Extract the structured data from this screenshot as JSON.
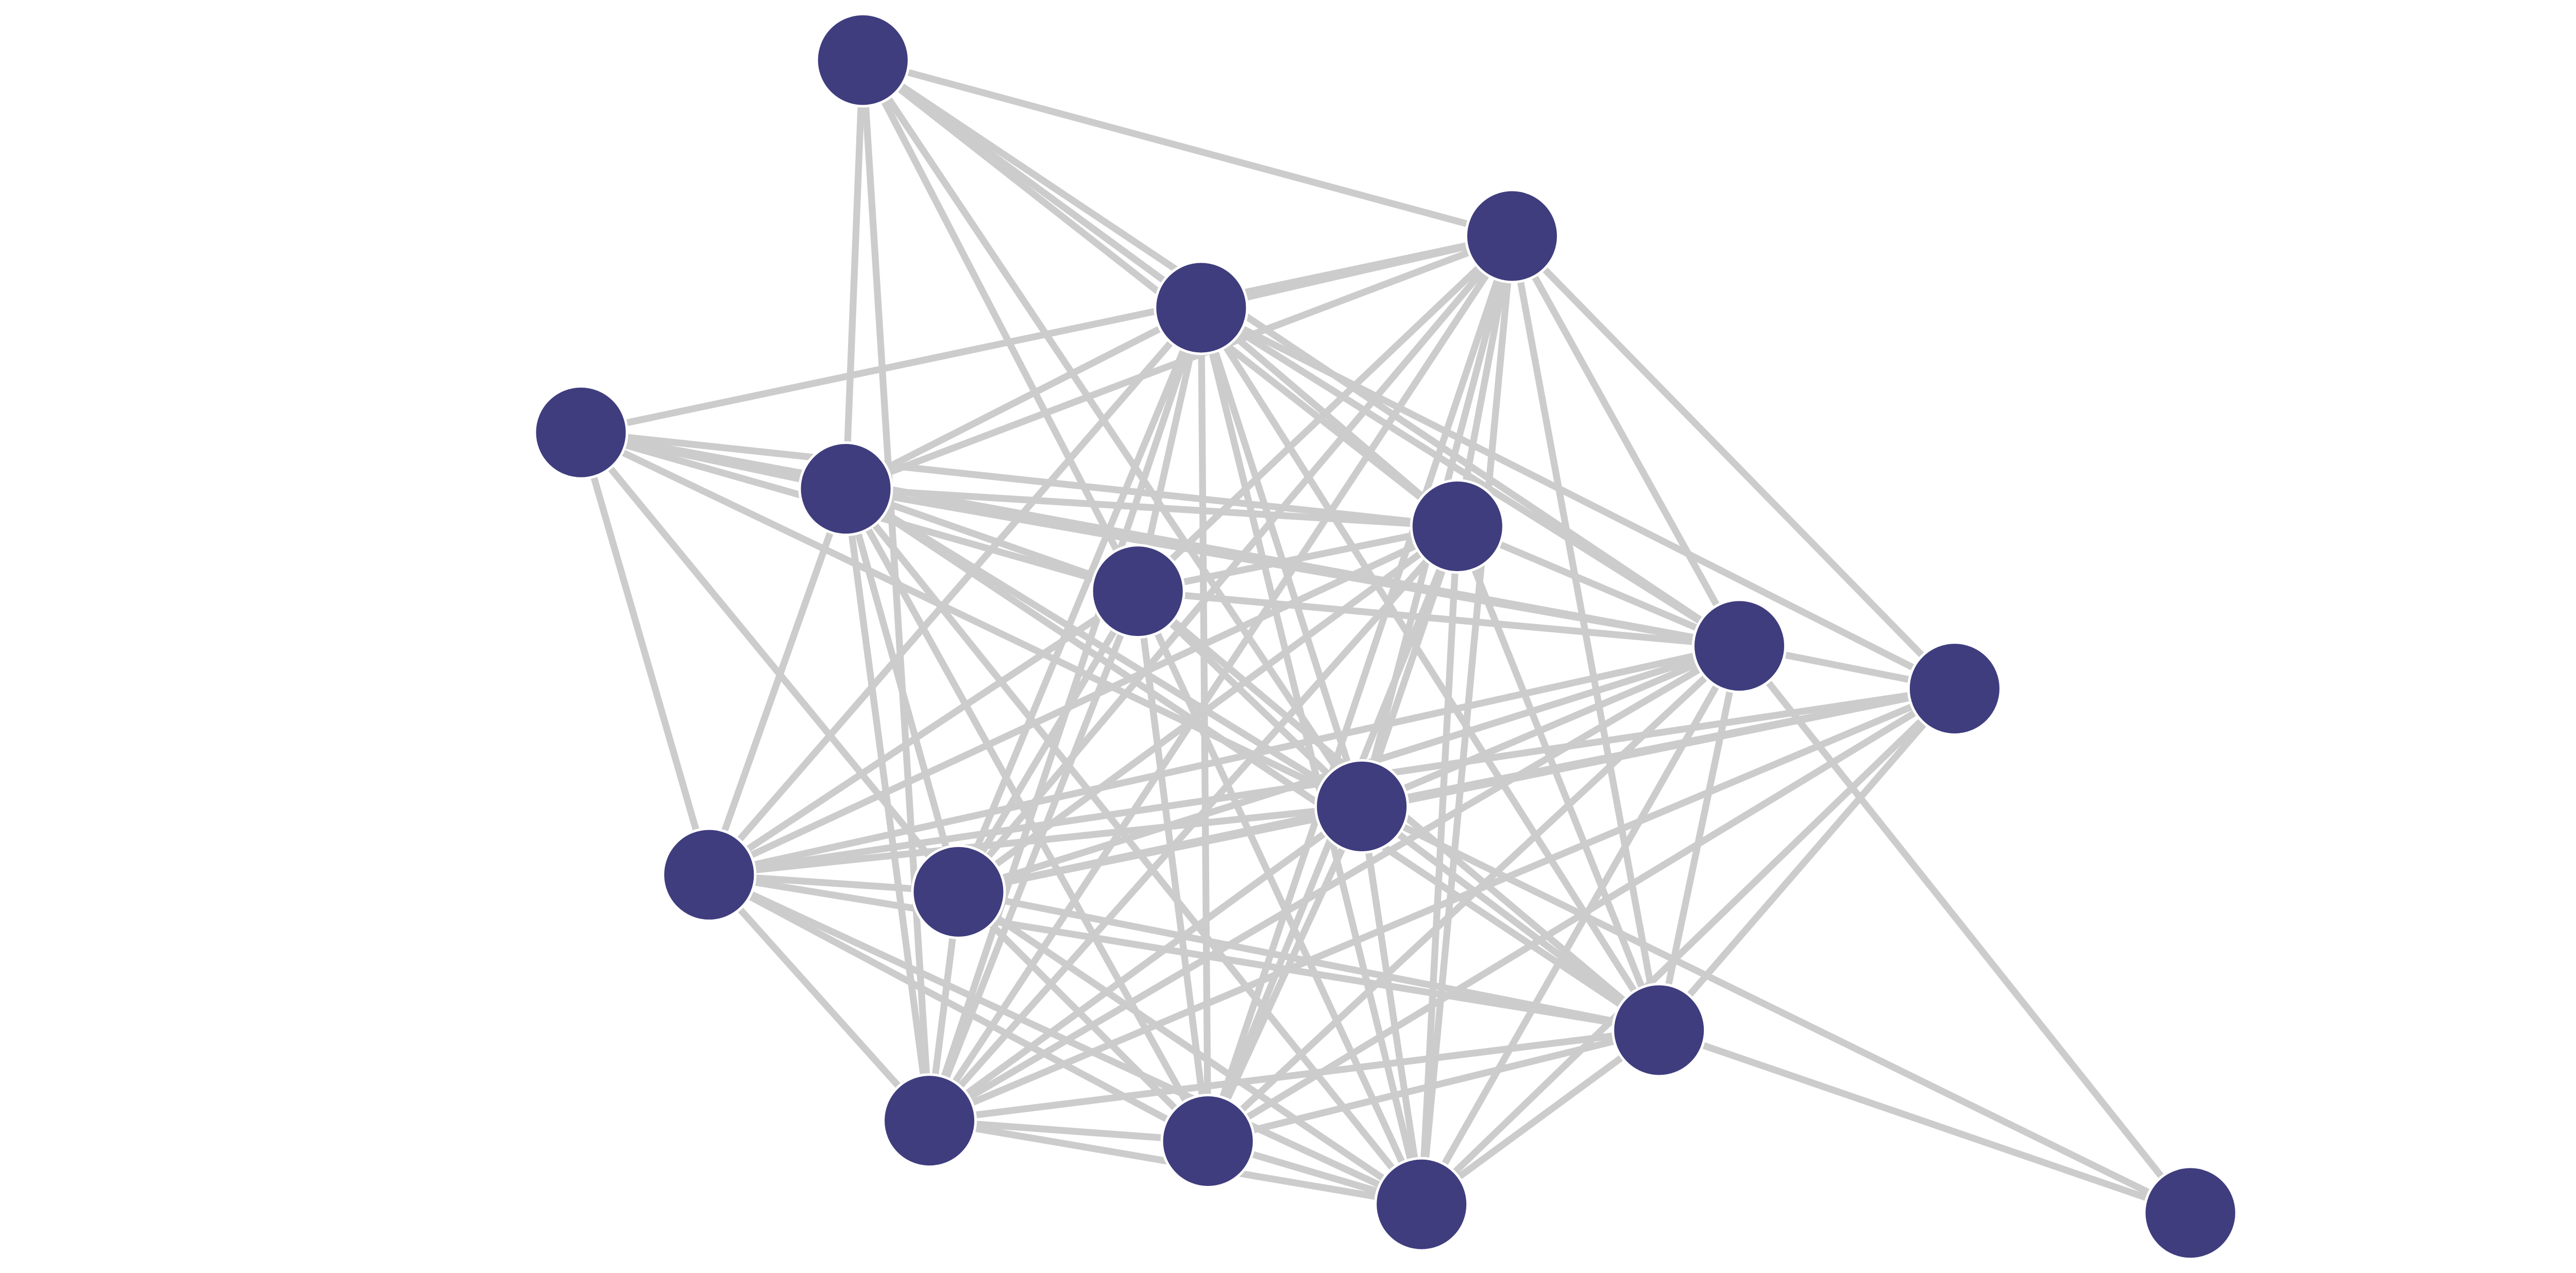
{
  "diagram": {
    "type": "network-graph",
    "node_count": 17,
    "colors": {
      "node_fill": "#3f3d7e",
      "node_stroke": "#ffffff",
      "edge": "#cccccc",
      "background": "#ffffff"
    },
    "nodes": [
      "n0",
      "n1",
      "n2",
      "n3",
      "n4",
      "n5",
      "n6",
      "n7",
      "n8",
      "n9",
      "n10",
      "n11",
      "n12",
      "n13",
      "n14",
      "n15",
      "n16"
    ],
    "edges": [
      [
        0,
        1
      ],
      [
        0,
        2
      ],
      [
        0,
        4
      ],
      [
        0,
        6
      ],
      [
        0,
        5
      ],
      [
        0,
        9
      ],
      [
        0,
        13
      ],
      [
        0,
        7
      ],
      [
        1,
        2
      ],
      [
        1,
        3
      ],
      [
        1,
        4
      ],
      [
        1,
        5
      ],
      [
        1,
        6
      ],
      [
        1,
        7
      ],
      [
        1,
        8
      ],
      [
        1,
        9
      ],
      [
        1,
        11
      ],
      [
        1,
        12
      ],
      [
        1,
        13
      ],
      [
        1,
        14
      ],
      [
        1,
        15
      ],
      [
        2,
        4
      ],
      [
        2,
        5
      ],
      [
        2,
        6
      ],
      [
        2,
        7
      ],
      [
        2,
        8
      ],
      [
        2,
        9
      ],
      [
        2,
        10
      ],
      [
        2,
        11
      ],
      [
        2,
        12
      ],
      [
        2,
        13
      ],
      [
        2,
        14
      ],
      [
        2,
        15
      ],
      [
        3,
        4
      ],
      [
        3,
        6
      ],
      [
        3,
        9
      ],
      [
        3,
        10
      ],
      [
        3,
        7
      ],
      [
        3,
        5
      ],
      [
        3,
        11
      ],
      [
        4,
        5
      ],
      [
        4,
        6
      ],
      [
        4,
        7
      ],
      [
        4,
        9
      ],
      [
        4,
        10
      ],
      [
        4,
        11
      ],
      [
        4,
        13
      ],
      [
        4,
        14
      ],
      [
        4,
        15
      ],
      [
        4,
        12
      ],
      [
        5,
        6
      ],
      [
        5,
        7
      ],
      [
        5,
        9
      ],
      [
        5,
        10
      ],
      [
        5,
        11
      ],
      [
        5,
        13
      ],
      [
        5,
        14
      ],
      [
        5,
        15
      ],
      [
        5,
        12
      ],
      [
        6,
        7
      ],
      [
        6,
        9
      ],
      [
        6,
        10
      ],
      [
        6,
        11
      ],
      [
        6,
        12
      ],
      [
        6,
        13
      ],
      [
        6,
        14
      ],
      [
        6,
        15
      ],
      [
        7,
        8
      ],
      [
        7,
        9
      ],
      [
        7,
        10
      ],
      [
        7,
        11
      ],
      [
        7,
        12
      ],
      [
        7,
        13
      ],
      [
        7,
        14
      ],
      [
        7,
        15
      ],
      [
        7,
        16
      ],
      [
        8,
        9
      ],
      [
        8,
        10
      ],
      [
        8,
        11
      ],
      [
        8,
        13
      ],
      [
        8,
        14
      ],
      [
        8,
        15
      ],
      [
        8,
        12
      ],
      [
        9,
        10
      ],
      [
        9,
        11
      ],
      [
        9,
        12
      ],
      [
        9,
        13
      ],
      [
        9,
        14
      ],
      [
        9,
        15
      ],
      [
        9,
        16
      ],
      [
        10,
        11
      ],
      [
        10,
        12
      ],
      [
        10,
        13
      ],
      [
        10,
        15
      ],
      [
        10,
        14
      ],
      [
        11,
        12
      ],
      [
        11,
        13
      ],
      [
        11,
        14
      ],
      [
        11,
        15
      ],
      [
        12,
        13
      ],
      [
        12,
        14
      ],
      [
        12,
        15
      ],
      [
        12,
        16
      ],
      [
        13,
        14
      ],
      [
        13,
        15
      ],
      [
        14,
        15
      ]
    ]
  }
}
